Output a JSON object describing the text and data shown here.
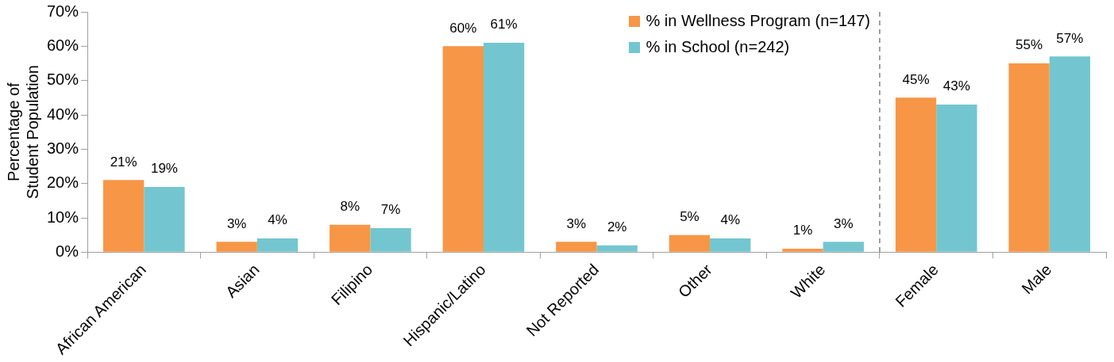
{
  "chart_data": {
    "type": "bar",
    "ylabel": "Percentage of\nStudent Population",
    "categories": [
      "African American",
      "Asian",
      "Filipino",
      "Hispanic/Latino",
      "Not Reported",
      "Other",
      "White",
      "Female",
      "Male"
    ],
    "series": [
      {
        "name": "% in Wellness Program (n=147)",
        "color": "#f79646",
        "values": [
          21,
          3,
          8,
          60,
          3,
          5,
          1,
          45,
          55
        ],
        "value_labels": [
          "21%",
          "3%",
          "8%",
          "60%",
          "3%",
          "5%",
          "1%",
          "45%",
          "55%"
        ]
      },
      {
        "name": "% in School (n=242)",
        "color": "#73c6cf",
        "values": [
          19,
          4,
          7,
          61,
          2,
          4,
          3,
          43,
          57
        ],
        "value_labels": [
          "19%",
          "4%",
          "7%",
          "61%",
          "2%",
          "4%",
          "3%",
          "43%",
          "57%"
        ]
      }
    ],
    "ylim": [
      0,
      70
    ],
    "yticks": [
      {
        "value": 0,
        "label": "0%"
      },
      {
        "value": 10,
        "label": "10%"
      },
      {
        "value": 20,
        "label": "20%"
      },
      {
        "value": 30,
        "label": "30%"
      },
      {
        "value": 40,
        "label": "40%"
      },
      {
        "value": 50,
        "label": "50%"
      },
      {
        "value": 60,
        "label": "60%"
      },
      {
        "value": 70,
        "label": "70%"
      }
    ],
    "ref_lines": [
      {
        "axis": "x",
        "value": "Female",
        "color": "#808080",
        "line_style": "dashed"
      }
    ],
    "legend": "top",
    "grid": false
  }
}
